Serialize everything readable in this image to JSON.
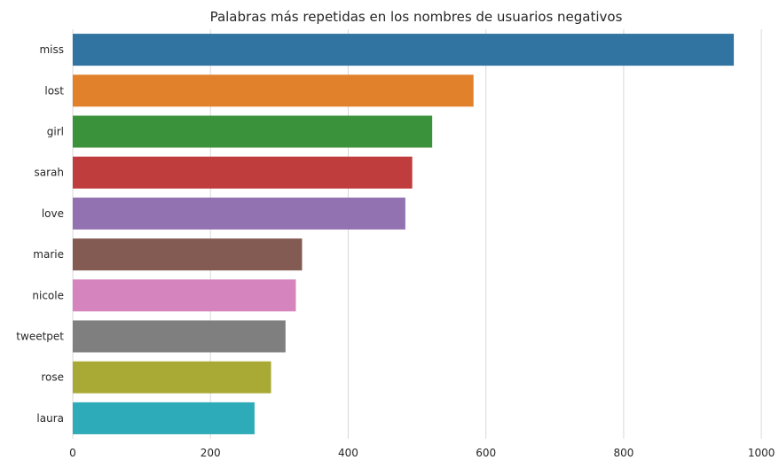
{
  "chart_data": {
    "type": "bar",
    "orientation": "horizontal",
    "title": "Palabras más repetidas en los nombres de usuarios negativos",
    "xlabel": "",
    "ylabel": "",
    "categories": [
      "miss",
      "lost",
      "girl",
      "sarah",
      "love",
      "marie",
      "nicole",
      "tweetpet",
      "rose",
      "laura"
    ],
    "values": [
      960,
      582,
      522,
      493,
      483,
      333,
      324,
      309,
      288,
      264
    ],
    "colors": [
      "#3274a1",
      "#e1812c",
      "#3a923a",
      "#c03d3e",
      "#9372b2",
      "#845b53",
      "#d684bd",
      "#7f7f7f",
      "#a9aa35",
      "#2eabb8"
    ],
    "xlim": [
      0,
      1005
    ],
    "xticks": [
      0,
      200,
      400,
      600,
      800,
      1000
    ],
    "grid": true,
    "legend": "none"
  }
}
